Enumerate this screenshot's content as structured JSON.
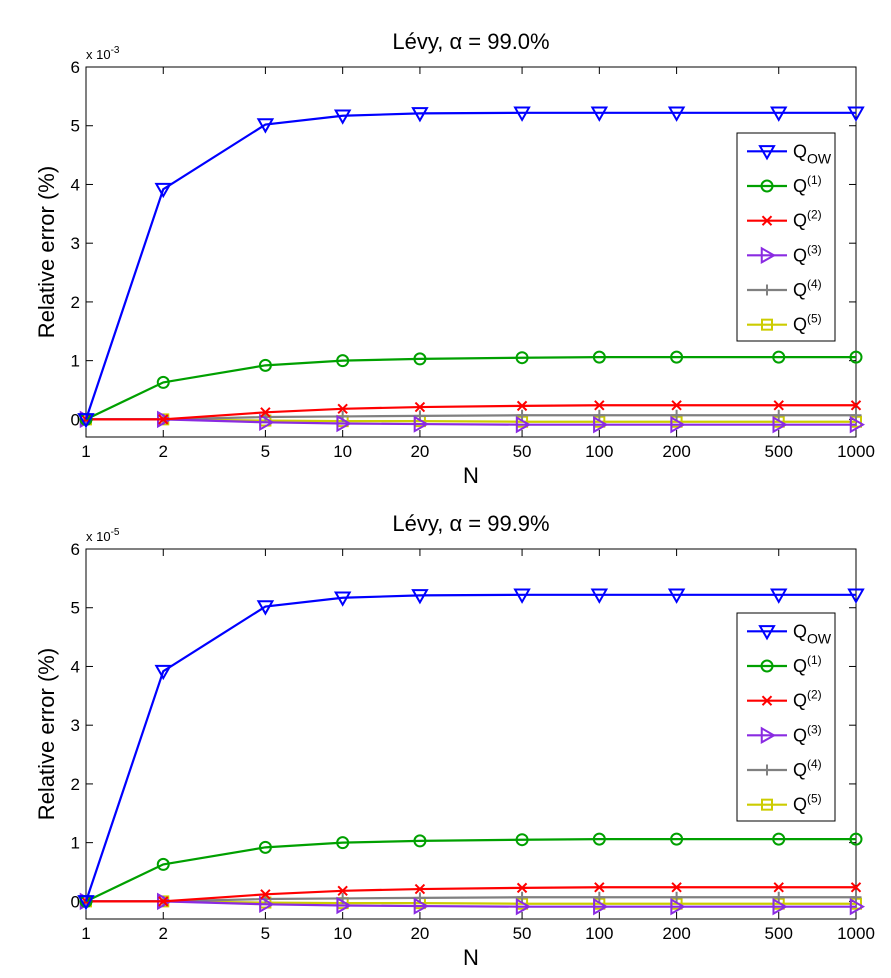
{
  "chart_data": [
    {
      "type": "line",
      "title": "Lévy, α =  99.0%",
      "xlabel": "N",
      "ylabel": "Relative error (%)",
      "x_scale": "log",
      "x": [
        1,
        2,
        5,
        10,
        20,
        50,
        100,
        200,
        500,
        1000
      ],
      "xtick_labels": [
        "1",
        "2",
        "5",
        "10",
        "20",
        "50",
        "100",
        "200",
        "500",
        "1000"
      ],
      "ylim": [
        -0.3,
        6
      ],
      "yticks": [
        0,
        1,
        2,
        3,
        4,
        5,
        6
      ],
      "ytick_labels": [
        "0",
        "1",
        "2",
        "3",
        "4",
        "5",
        "6"
      ],
      "y_multiplier": "x 10",
      "y_exponent": "-3",
      "legend_position": "right",
      "grid": false,
      "series": [
        {
          "name": "Q",
          "sup": "",
          "sub": "OW",
          "color": "#0000ff",
          "marker": "triangle-down",
          "values": [
            0,
            3.92,
            5.02,
            5.17,
            5.21,
            5.22,
            5.22,
            5.22,
            5.22,
            5.22
          ]
        },
        {
          "name": "Q",
          "sup": "(1)",
          "sub": "",
          "color": "#00a000",
          "marker": "circle",
          "values": [
            0,
            0.63,
            0.92,
            1.0,
            1.03,
            1.05,
            1.06,
            1.06,
            1.06,
            1.06
          ]
        },
        {
          "name": "Q",
          "sup": "(2)",
          "sub": "",
          "color": "#ff0000",
          "marker": "x",
          "values": [
            0,
            0,
            0.12,
            0.18,
            0.21,
            0.23,
            0.24,
            0.24,
            0.24,
            0.24
          ]
        },
        {
          "name": "Q",
          "sup": "(3)",
          "sub": "",
          "color": "#8a2be2",
          "marker": "triangle-right",
          "values": [
            0,
            0,
            -0.05,
            -0.07,
            -0.08,
            -0.09,
            -0.09,
            -0.09,
            -0.09,
            -0.09
          ]
        },
        {
          "name": "Q",
          "sup": "(4)",
          "sub": "",
          "color": "#808080",
          "marker": "plus",
          "values": [
            0,
            0,
            0.04,
            0.05,
            0.06,
            0.07,
            0.07,
            0.07,
            0.07,
            0.07
          ]
        },
        {
          "name": "Q",
          "sup": "(5)",
          "sub": "",
          "color": "#cccc00",
          "marker": "square",
          "values": [
            0,
            0,
            -0.02,
            -0.03,
            -0.03,
            -0.04,
            -0.04,
            -0.04,
            -0.04,
            -0.04
          ]
        }
      ]
    },
    {
      "type": "line",
      "title": "Lévy, α =  99.9%",
      "xlabel": "N",
      "ylabel": "Relative error (%)",
      "x_scale": "log",
      "x": [
        1,
        2,
        5,
        10,
        20,
        50,
        100,
        200,
        500,
        1000
      ],
      "xtick_labels": [
        "1",
        "2",
        "5",
        "10",
        "20",
        "50",
        "100",
        "200",
        "500",
        "1000"
      ],
      "ylim": [
        -0.3,
        6
      ],
      "yticks": [
        0,
        1,
        2,
        3,
        4,
        5,
        6
      ],
      "ytick_labels": [
        "0",
        "1",
        "2",
        "3",
        "4",
        "5",
        "6"
      ],
      "y_multiplier": "x 10",
      "y_exponent": "-5",
      "legend_position": "right",
      "grid": false,
      "series": [
        {
          "name": "Q",
          "sup": "",
          "sub": "OW",
          "color": "#0000ff",
          "marker": "triangle-down",
          "values": [
            0,
            3.92,
            5.02,
            5.17,
            5.21,
            5.22,
            5.22,
            5.22,
            5.22,
            5.22
          ]
        },
        {
          "name": "Q",
          "sup": "(1)",
          "sub": "",
          "color": "#00a000",
          "marker": "circle",
          "values": [
            0,
            0.63,
            0.92,
            1.0,
            1.03,
            1.05,
            1.06,
            1.06,
            1.06,
            1.06
          ]
        },
        {
          "name": "Q",
          "sup": "(2)",
          "sub": "",
          "color": "#ff0000",
          "marker": "x",
          "values": [
            0,
            0,
            0.12,
            0.18,
            0.21,
            0.23,
            0.24,
            0.24,
            0.24,
            0.24
          ]
        },
        {
          "name": "Q",
          "sup": "(3)",
          "sub": "",
          "color": "#8a2be2",
          "marker": "triangle-right",
          "values": [
            0,
            0,
            -0.05,
            -0.07,
            -0.08,
            -0.09,
            -0.09,
            -0.09,
            -0.09,
            -0.09
          ]
        },
        {
          "name": "Q",
          "sup": "(4)",
          "sub": "",
          "color": "#808080",
          "marker": "plus",
          "values": [
            0,
            0,
            0.04,
            0.05,
            0.06,
            0.07,
            0.07,
            0.07,
            0.07,
            0.07
          ]
        },
        {
          "name": "Q",
          "sup": "(5)",
          "sub": "",
          "color": "#cccc00",
          "marker": "square",
          "values": [
            0,
            0,
            -0.02,
            -0.03,
            -0.03,
            -0.04,
            -0.04,
            -0.04,
            -0.04,
            -0.04
          ]
        }
      ]
    }
  ]
}
